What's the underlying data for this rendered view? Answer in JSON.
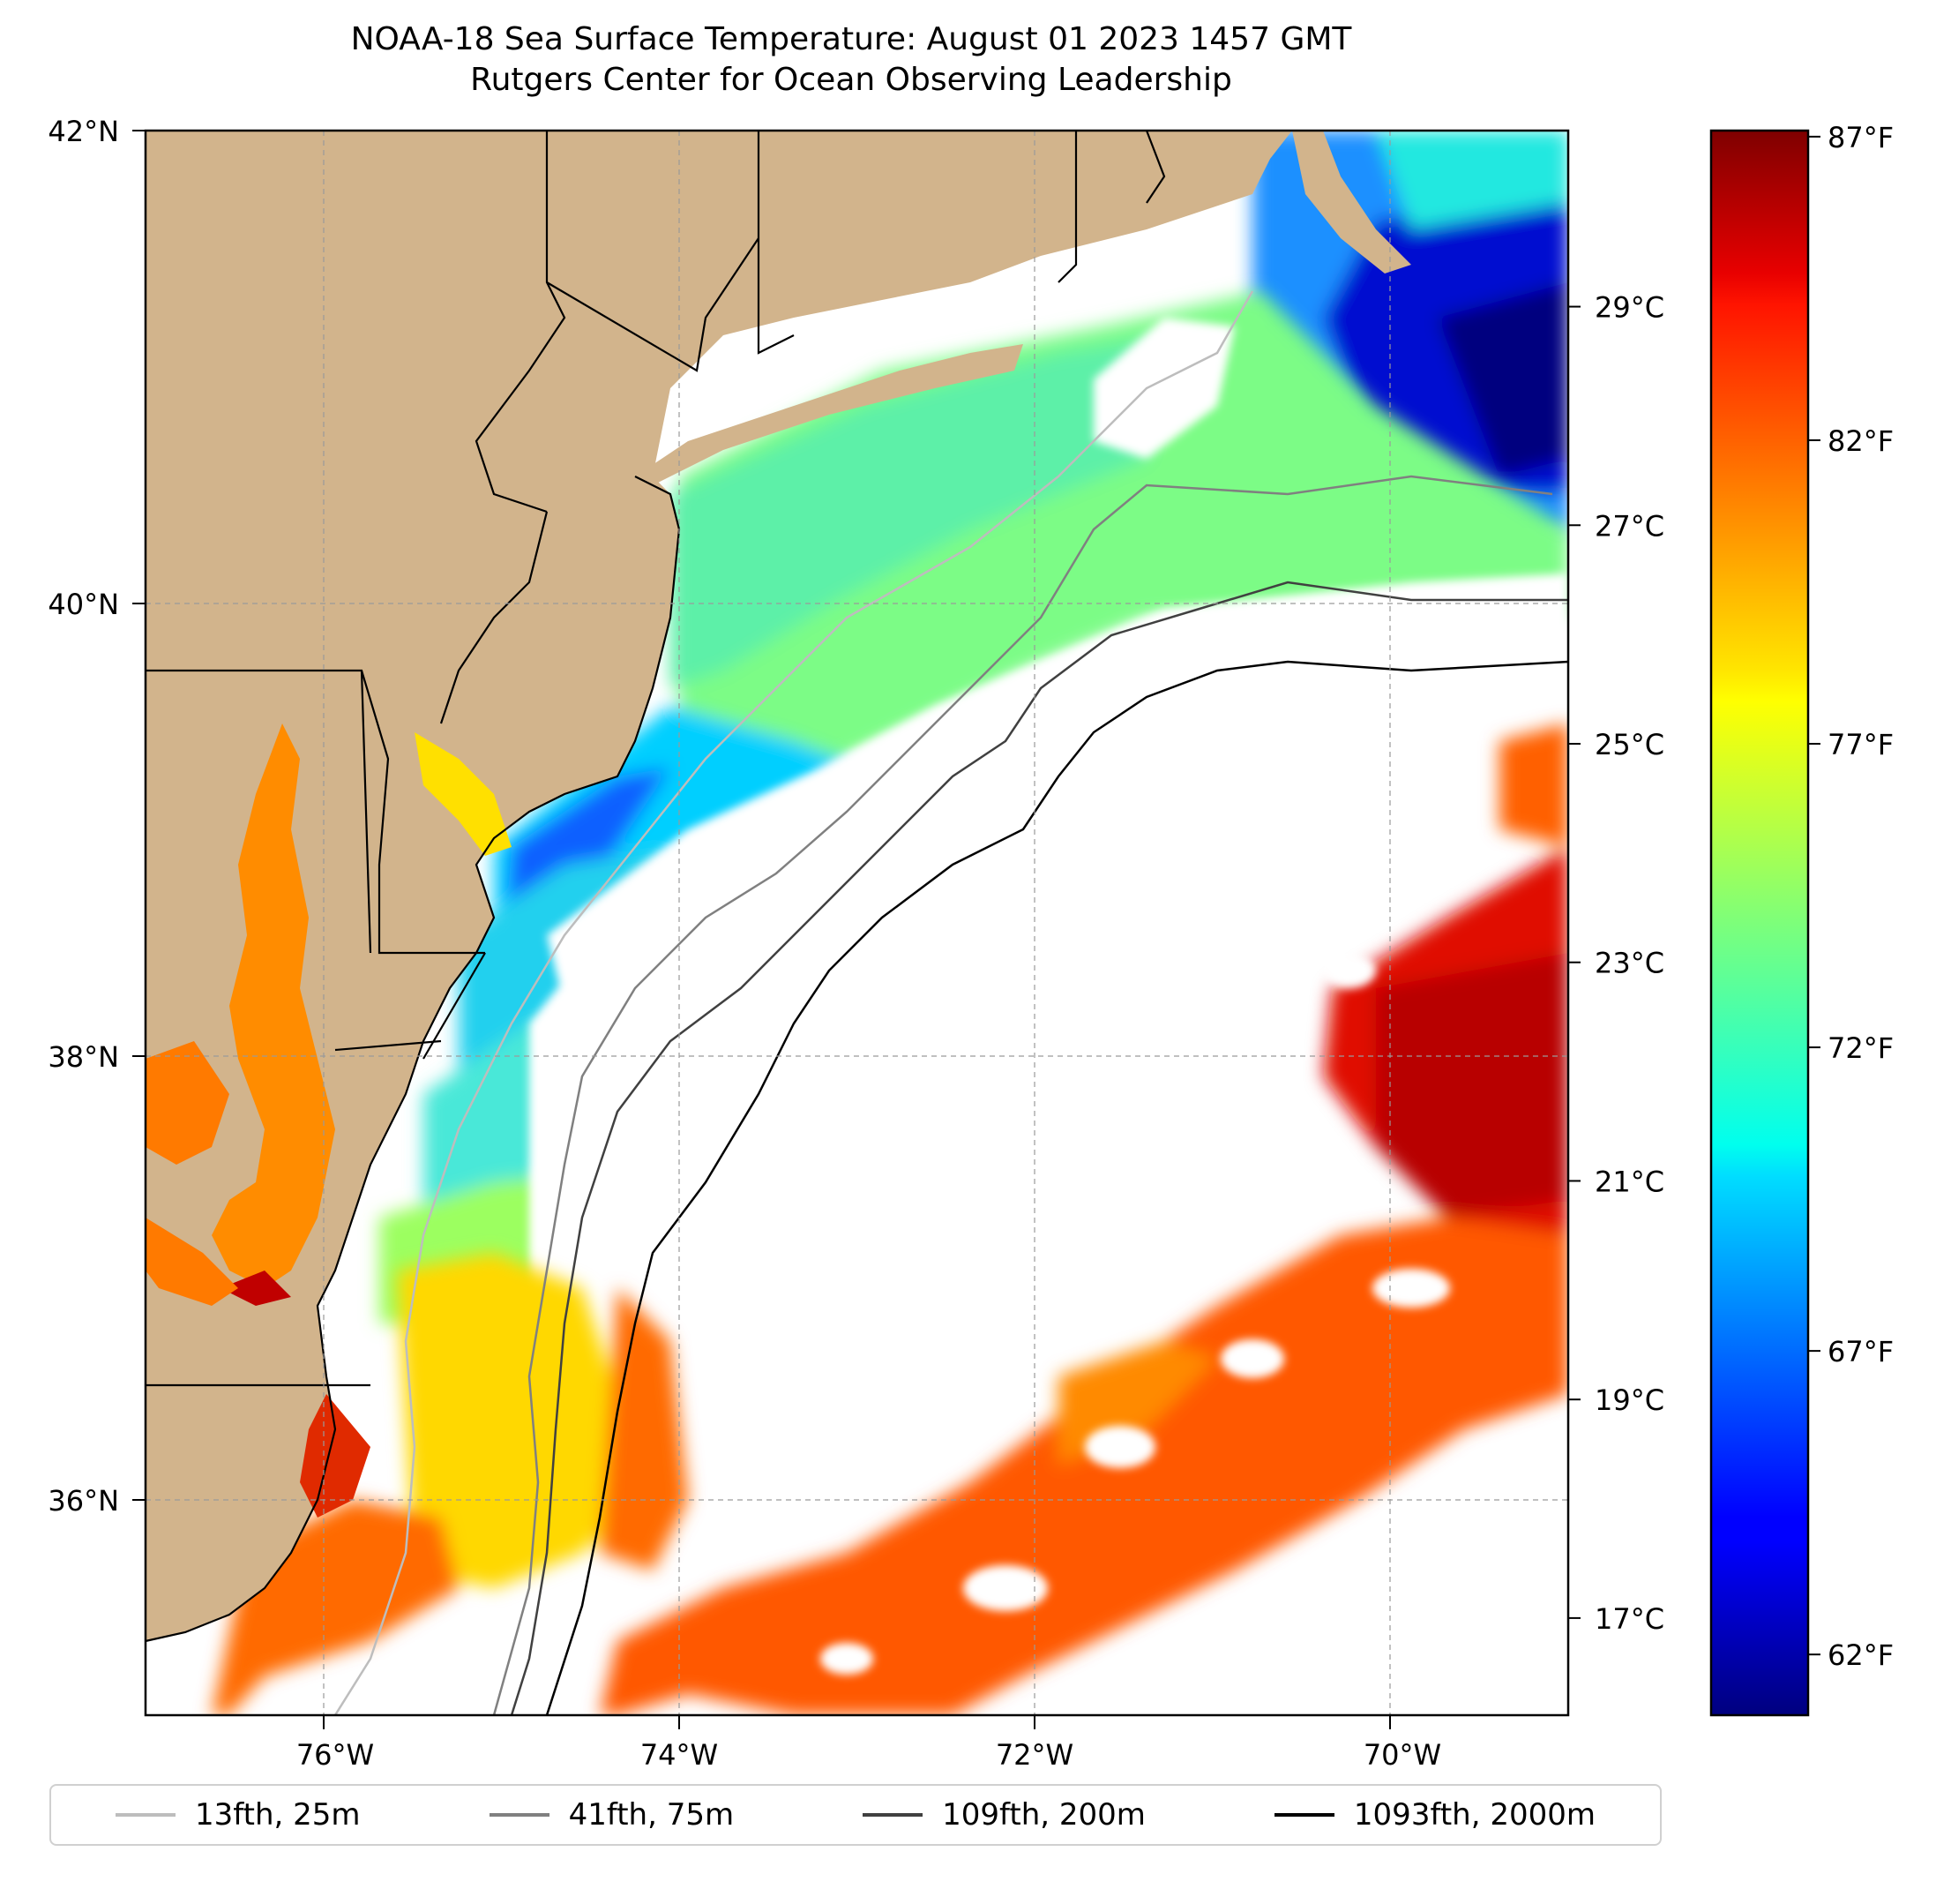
{
  "title": {
    "line1": "NOAA-18 Sea Surface Temperature: August 01 2023 1457 GMT",
    "line2": "Rutgers Center for Ocean Observing Leadership"
  },
  "axes": {
    "lat_ticks": [
      "42°N",
      "40°N",
      "38°N",
      "36°N"
    ],
    "lon_ticks": [
      "76°W",
      "74°W",
      "72°W",
      "70°W"
    ],
    "lon_range": [
      -77,
      -69
    ],
    "lat_range": [
      35,
      42
    ]
  },
  "colorbar": {
    "colormap": "jet",
    "fahrenheit_ticks": [
      "87°F",
      "82°F",
      "77°F",
      "72°F",
      "67°F",
      "62°F"
    ],
    "celsius_ticks": [
      "29°C",
      "27°C",
      "25°C",
      "23°C",
      "21°C",
      "19°C",
      "17°C"
    ],
    "f_values": [
      87,
      82,
      77,
      72,
      67,
      62
    ],
    "c_values": [
      29,
      27,
      25,
      23,
      21,
      19,
      17
    ],
    "range_f": [
      61.0,
      87.1
    ]
  },
  "legend": [
    {
      "label": "13fth, 25m",
      "color": "#bdbdbd"
    },
    {
      "label": "41fth, 75m",
      "color": "#808080"
    },
    {
      "label": "109fth, 200m",
      "color": "#404040"
    },
    {
      "label": "1093fth, 2000m",
      "color": "#000000"
    }
  ],
  "colors": {
    "land": "#d2b48c",
    "no_data": "#ffffff"
  }
}
